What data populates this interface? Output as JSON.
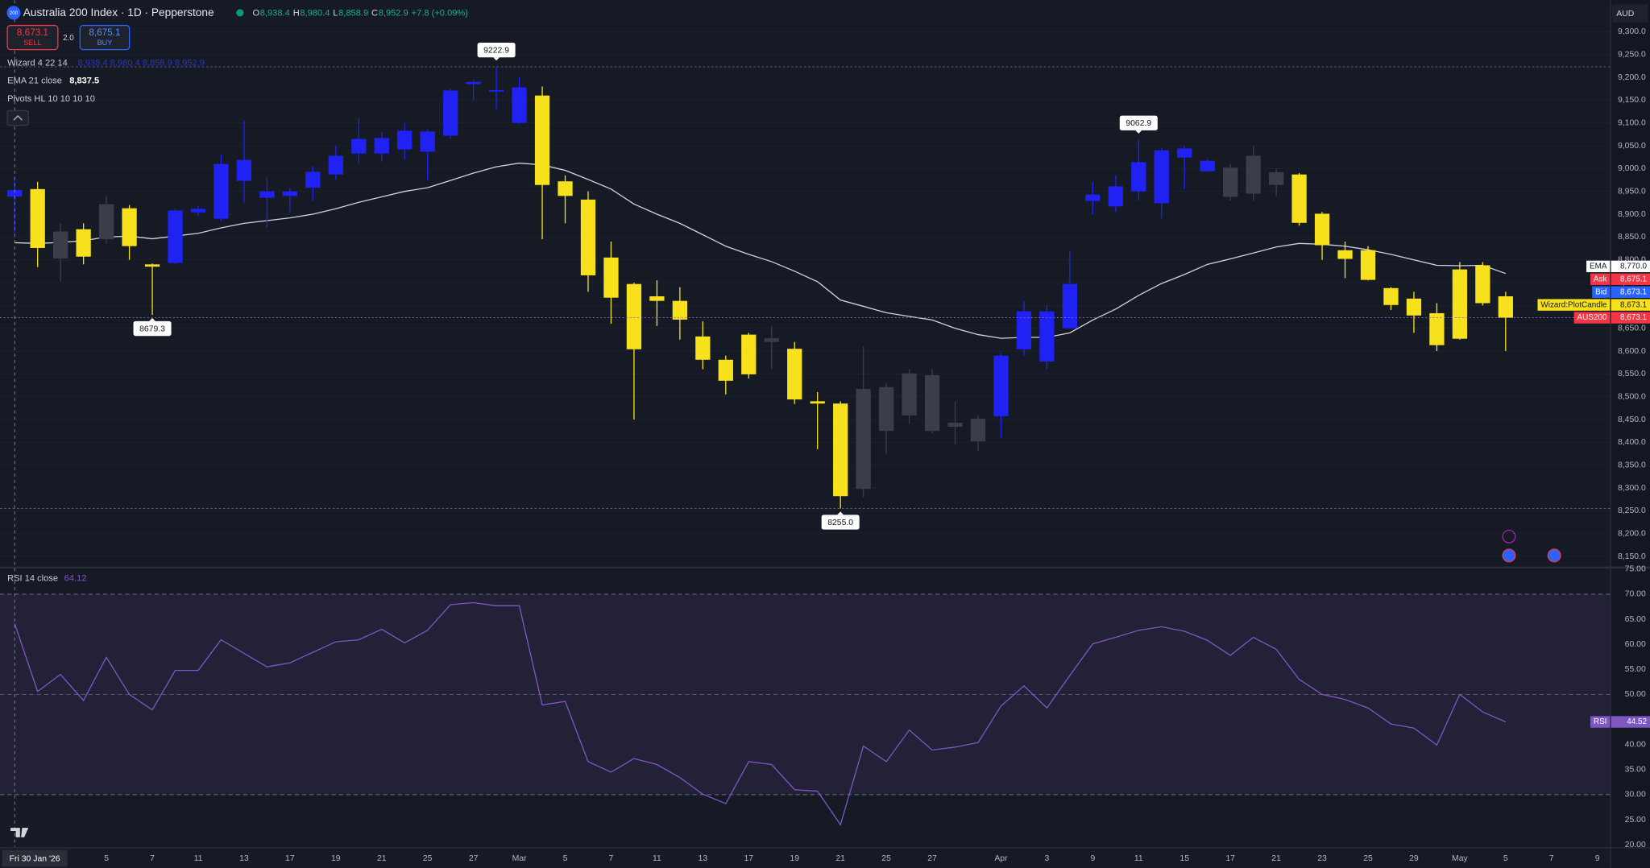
{
  "chart_data": [
    {
      "type": "candlestick",
      "title": "Australia 200 Index · 1D · Pepperstone",
      "open": [
        8938.4,
        8955,
        8803,
        8867,
        8845,
        8913,
        8790,
        8793,
        8904,
        8890,
        8973,
        8936,
        8940,
        8958,
        8987,
        9033,
        9033,
        9042,
        9037,
        9072,
        9185,
        9170,
        9100,
        9160,
        8972,
        8932,
        8805,
        8747,
        8720,
        8710,
        8632,
        8581,
        8636,
        8628,
        8605,
        8490,
        8485,
        8298,
        8425,
        8459,
        8425,
        8443,
        8402,
        8457,
        8604,
        8577,
        8650,
        8929,
        8917,
        8950,
        8924,
        9024,
        8994,
        8938,
        8945,
        8964,
        8987,
        8901,
        8821,
        8821,
        8738,
        8715,
        8683,
        8779,
        8788,
        8720
      ],
      "high": [
        8980.4,
        8971,
        8880,
        8880,
        8940,
        8920,
        8792,
        8912,
        8918,
        9030,
        9105,
        8980,
        8958,
        9005,
        9050,
        9110,
        9080,
        9100,
        9085,
        9175,
        9195,
        9222.9,
        9200,
        9180,
        8985,
        8950,
        8840,
        8750,
        8755,
        8740,
        8665,
        8590,
        8640,
        8655,
        8620,
        8510,
        8490,
        8610,
        8530,
        8560,
        8560,
        8490,
        8460,
        8595,
        8710,
        8700,
        8820,
        8970,
        8985,
        9062.9,
        9045,
        9050,
        9020,
        9010,
        9050,
        9000,
        8990,
        8905,
        8840,
        8830,
        8740,
        8730,
        8705,
        8795,
        8795,
        8730
      ],
      "low": [
        8858.9,
        8784,
        8752,
        8790,
        8835,
        8800,
        8679.3,
        8790,
        8895,
        8885,
        8925,
        8870,
        8905,
        8930,
        8975,
        9010,
        9015,
        9020,
        8975,
        9065,
        9150,
        9130,
        9098,
        8845,
        8880,
        8730,
        8660,
        8450,
        8655,
        8625,
        8560,
        8505,
        8540,
        8560,
        8484,
        8385,
        8255,
        8280,
        8375,
        8440,
        8420,
        8395,
        8380,
        8410,
        8590,
        8560,
        8648,
        8900,
        8905,
        8930,
        8890,
        8955,
        8993,
        8930,
        8930,
        8940,
        8875,
        8800,
        8760,
        8755,
        8690,
        8640,
        8600,
        8625,
        8700,
        8600
      ],
      "close": [
        8952.9,
        8826,
        8862,
        8807,
        8922,
        8830,
        8785,
        8908,
        8912,
        9010,
        9019,
        8950,
        8950,
        8993,
        9028,
        9065,
        9067,
        9083,
        9081,
        9171,
        9190,
        9172,
        9178,
        8964,
        8940,
        8766,
        8717,
        8604,
        8710,
        8669,
        8581,
        8535,
        8549,
        8620,
        8494,
        8485,
        8282,
        8517,
        8521,
        8551,
        8547,
        8434,
        8452,
        8590,
        8687,
        8687,
        8747,
        8943,
        8961,
        9014,
        9040,
        9044,
        9017,
        9002,
        9028,
        8992,
        8881,
        8832,
        8802,
        8756,
        8701,
        8678,
        8613,
        8627,
        8705,
        8673.1
      ],
      "candle_colors": [
        "#1f22f2",
        "#f7e11c",
        "#3b3e48",
        "#f7e11c",
        "#3b3e48",
        "#f7e11c",
        "#f7e11c",
        "#1f22f2",
        "#1f22f2",
        "#1f22f2",
        "#1f22f2",
        "#1f22f2",
        "#1f22f2",
        "#1f22f2",
        "#1f22f2",
        "#1f22f2",
        "#1f22f2",
        "#1f22f2",
        "#1f22f2",
        "#1f22f2",
        "#1f22f2",
        "#1f22f2",
        "#1f22f2",
        "#f7e11c",
        "#f7e11c",
        "#f7e11c",
        "#f7e11c",
        "#f7e11c",
        "#f7e11c",
        "#f7e11c",
        "#f7e11c",
        "#f7e11c",
        "#f7e11c",
        "#3b3e48",
        "#f7e11c",
        "#f7e11c",
        "#f7e11c",
        "#3b3e48",
        "#3b3e48",
        "#3b3e48",
        "#3b3e48",
        "#3b3e48",
        "#3b3e48",
        "#1f22f2",
        "#1f22f2",
        "#1f22f2",
        "#1f22f2",
        "#1f22f2",
        "#1f22f2",
        "#1f22f2",
        "#1f22f2",
        "#1f22f2",
        "#1f22f2",
        "#3b3e48",
        "#3b3e48",
        "#3b3e48",
        "#f7e11c",
        "#f7e11c",
        "#f7e11c",
        "#f7e11c",
        "#f7e11c",
        "#f7e11c",
        "#f7e11c",
        "#f7e11c",
        "#f7e11c",
        "#f7e11c"
      ],
      "series": [
        {
          "name": "EMA",
          "color": "#d1d4dc",
          "values": [
            8837.5,
            8836,
            8838,
            8842,
            8850,
            8852,
            8846,
            8852,
            8858,
            8870,
            8880,
            8886,
            8892,
            8900,
            8912,
            8926,
            8938,
            8950,
            8958,
            8974,
            8990,
            9004,
            9012,
            9008,
            8996,
            8976,
            8955,
            8922,
            8900,
            8880,
            8855,
            8830,
            8812,
            8796,
            8775,
            8752,
            8712,
            8698,
            8684,
            8676,
            8668,
            8650,
            8636,
            8628,
            8630,
            8630,
            8640,
            8668,
            8692,
            8722,
            8748,
            8768,
            8790,
            8802,
            8815,
            8828,
            8836,
            8834,
            8830,
            8822,
            8812,
            8800,
            8788,
            8787,
            8788,
            8770
          ]
        }
      ],
      "pivots": {
        "indices": [
          21,
          49,
          6,
          36
        ],
        "values": [
          9222.9,
          9062.9,
          8679.3,
          8255
        ],
        "value_labels": [
          "9222.9",
          "9062.9",
          "8679.3",
          "8255.0"
        ]
      },
      "xlim": [
        -0.64,
        69.55
      ],
      "ylim": [
        8129,
        9369
      ],
      "yticks": [
        {
          "value": 9300,
          "label": "9,300.0"
        },
        {
          "value": 9250,
          "label": "9,250.0"
        },
        {
          "value": 9200,
          "label": "9,200.0"
        },
        {
          "value": 9150,
          "label": "9,150.0"
        },
        {
          "value": 9100,
          "label": "9,100.0"
        },
        {
          "value": 9050,
          "label": "9,050.0"
        },
        {
          "value": 9000,
          "label": "9,000.0"
        },
        {
          "value": 8950,
          "label": "8,950.0"
        },
        {
          "value": 8900,
          "label": "8,900.0"
        },
        {
          "value": 8850,
          "label": "8,850.0"
        },
        {
          "value": 8800,
          "label": "8,800.0"
        },
        {
          "value": 8750,
          "label": "8,750.0"
        },
        {
          "value": 8700,
          "label": "8,700.0"
        },
        {
          "value": 8650,
          "label": "8,650.0"
        },
        {
          "value": 8600,
          "label": "8,600.0"
        },
        {
          "value": 8550,
          "label": "8,550.0"
        },
        {
          "value": 8500,
          "label": "8,500.0"
        },
        {
          "value": 8450,
          "label": "8,450.0"
        },
        {
          "value": 8400,
          "label": "8,400.0"
        },
        {
          "value": 8350,
          "label": "8,350.0"
        },
        {
          "value": 8300,
          "label": "8,300.0"
        },
        {
          "value": 8250,
          "label": "8,250.0"
        },
        {
          "value": 8200,
          "label": "8,200.0"
        },
        {
          "value": 8150,
          "label": "8,150.0"
        }
      ],
      "grid": true,
      "price_tags": [
        {
          "name": "EMA",
          "value": 8770,
          "value_label": "8,770.0",
          "color": "#ffffff",
          "text_color": "#131722"
        },
        {
          "name": "Ask",
          "value": 8675.1,
          "value_label": "8,675.1",
          "color": "#f23645",
          "text_color": "#ffffff"
        },
        {
          "name": "Bid",
          "value": 8673.1,
          "value_label": "8,673.1",
          "color": "#2962ff",
          "text_color": "#ffffff"
        },
        {
          "name": "Wizard:PlotCandle",
          "value": 8673.1,
          "value_label": "8,673.1",
          "color": "#f7e11c",
          "text_color": "#131722"
        },
        {
          "name": "AUS200",
          "value": 8673.1,
          "value_label": "8,673.1",
          "color": "#f23645",
          "text_color": "#ffffff"
        }
      ]
    },
    {
      "type": "line",
      "title": "RSI 14 close",
      "legend_value": "64.12",
      "series": [
        {
          "name": "RSI",
          "color": "#7e57c2",
          "values": [
            64.12,
            50.6,
            54,
            48.8,
            57.4,
            50,
            46.9,
            54.8,
            54.8,
            60.9,
            58.2,
            55.5,
            56.3,
            58.4,
            60.5,
            60.9,
            63,
            60.3,
            62.8,
            67.9,
            68.3,
            67.7,
            67.7,
            47.9,
            48.6,
            36.6,
            34.5,
            37.2,
            36,
            33.4,
            30.1,
            28.2,
            36.6,
            36,
            31,
            30.7,
            24,
            39.7,
            36.6,
            42.9,
            38.9,
            39.5,
            40.4,
            47.7,
            51.7,
            47.3,
            53.8,
            60.1,
            61.4,
            62.8,
            63.5,
            62.6,
            60.8,
            57.8,
            61.4,
            59,
            53,
            50,
            49,
            47.3,
            44.1,
            43.3,
            39.9,
            50,
            46.5,
            44.52
          ]
        }
      ],
      "bands": [
        30,
        70
      ],
      "xlim": [
        -0.64,
        69.55
      ],
      "ylim": [
        19.6,
        75
      ],
      "yticks": [
        {
          "value": 75,
          "label": "75.00"
        },
        {
          "value": 70,
          "label": "70.00"
        },
        {
          "value": 65,
          "label": "65.00"
        },
        {
          "value": 60,
          "label": "60.00"
        },
        {
          "value": 55,
          "label": "55.00"
        },
        {
          "value": 50,
          "label": "50.00"
        },
        {
          "value": 45,
          "label": "45.00"
        },
        {
          "value": 40,
          "label": "40.00"
        },
        {
          "value": 35,
          "label": "35.00"
        },
        {
          "value": 30,
          "label": "30.00"
        },
        {
          "value": 25,
          "label": "25.00"
        },
        {
          "value": 20,
          "label": "20.00"
        }
      ],
      "xticks": [
        {
          "value": 4,
          "label": "5"
        },
        {
          "value": 6,
          "label": "7"
        },
        {
          "value": 8,
          "label": "11"
        },
        {
          "value": 10,
          "label": "13"
        },
        {
          "value": 12,
          "label": "17"
        },
        {
          "value": 14,
          "label": "19"
        },
        {
          "value": 16,
          "label": "21"
        },
        {
          "value": 18,
          "label": "25"
        },
        {
          "value": 20,
          "label": "27"
        },
        {
          "value": 22,
          "label": "Mar"
        },
        {
          "value": 24,
          "label": "5"
        },
        {
          "value": 26,
          "label": "7"
        },
        {
          "value": 28,
          "label": "11"
        },
        {
          "value": 30,
          "label": "13"
        },
        {
          "value": 32,
          "label": "17"
        },
        {
          "value": 34,
          "label": "19"
        },
        {
          "value": 36,
          "label": "21"
        },
        {
          "value": 38,
          "label": "25"
        },
        {
          "value": 40,
          "label": "27"
        },
        {
          "value": 43,
          "label": "Apr"
        },
        {
          "value": 45,
          "label": "3"
        },
        {
          "value": 47,
          "label": "9"
        },
        {
          "value": 49,
          "label": "11"
        },
        {
          "value": 51,
          "label": "15"
        },
        {
          "value": 53,
          "label": "17"
        },
        {
          "value": 55,
          "label": "21"
        },
        {
          "value": 57,
          "label": "23"
        },
        {
          "value": 59,
          "label": "25"
        },
        {
          "value": 61,
          "label": "29"
        },
        {
          "value": 63,
          "label": "May"
        },
        {
          "value": 65,
          "label": "5"
        },
        {
          "value": 67,
          "label": "7"
        },
        {
          "value": 69,
          "label": "9"
        }
      ],
      "crosshair_label": "Fri 30 Jan '26",
      "price_tag": {
        "name": "RSI",
        "value": 44.52,
        "value_label": "44.52",
        "color": "#7e57c2",
        "text_color": "#ffffff"
      }
    }
  ],
  "header": {
    "badge": "200",
    "ohlc": [
      {
        "key": "O",
        "value": "8,938.4"
      },
      {
        "key": "H",
        "value": "8,980.4"
      },
      {
        "key": "L",
        "value": "8,858.9"
      },
      {
        "key": "C",
        "value": "8,952.9"
      }
    ],
    "change": "+7.8 (+0.09%)"
  },
  "trade": {
    "sell_price": "8,673.1",
    "sell": "SELL",
    "spread": "2.0",
    "buy_price": "8,675.1",
    "buy": "BUY"
  },
  "indicators": [
    {
      "name": "Wizard 4 22 14",
      "values": "8,938.4  8,980.4  8,858.9  8,952.9"
    },
    {
      "name": "EMA 21 close",
      "values": "8,837.5"
    },
    {
      "name": "Pivots HL 10 10 10 10"
    }
  ],
  "currency": "AUD"
}
